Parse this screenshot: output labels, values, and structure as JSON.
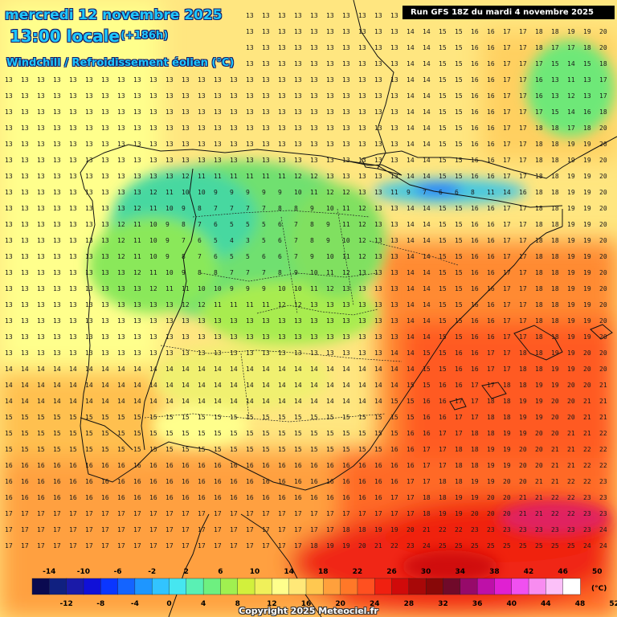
{
  "header": {
    "date": "mercredi 12 novembre 2025",
    "time": "13:00 locale",
    "offset": "(+186h)",
    "variable": "Windchill / Refroidissement éolien (°C)",
    "run": "Run GFS 18Z du mardi 4 novembre 2025"
  },
  "footer": {
    "credit": "Copyright 2025 Meteociel.fr"
  },
  "legend": {
    "unit": "(°C)",
    "top_ticks": [
      "-14",
      "-10",
      "-6",
      "-2",
      "2",
      "6",
      "10",
      "14",
      "18",
      "22",
      "26",
      "30",
      "34",
      "38",
      "42",
      "46",
      "50"
    ],
    "bottom_ticks": [
      "-12",
      "-8",
      "-4",
      "0",
      "4",
      "8",
      "12",
      "16",
      "20",
      "24",
      "28",
      "32",
      "36",
      "40",
      "44",
      "48",
      "52"
    ],
    "colors": [
      "#0a0a50",
      "#102080",
      "#1a1aa8",
      "#1010d8",
      "#0a36ff",
      "#1464ff",
      "#1e96ff",
      "#32c4ff",
      "#46e6f0",
      "#5af0b4",
      "#6ef080",
      "#a0f050",
      "#d2f03c",
      "#f0f05a",
      "#ffff8c",
      "#ffe878",
      "#ffc850",
      "#ffa03c",
      "#ff7828",
      "#ff5020",
      "#f02010",
      "#d00a0a",
      "#a80808",
      "#880808",
      "#700a2a",
      "#960a6a",
      "#be10a8",
      "#e020d2",
      "#f050f0",
      "#f88cf0",
      "#fcc0f8",
      "#ffffff"
    ]
  },
  "map": {
    "region": "Iberian Peninsula",
    "grid_values_description": "Temperature values printed at every grid point across the map"
  }
}
